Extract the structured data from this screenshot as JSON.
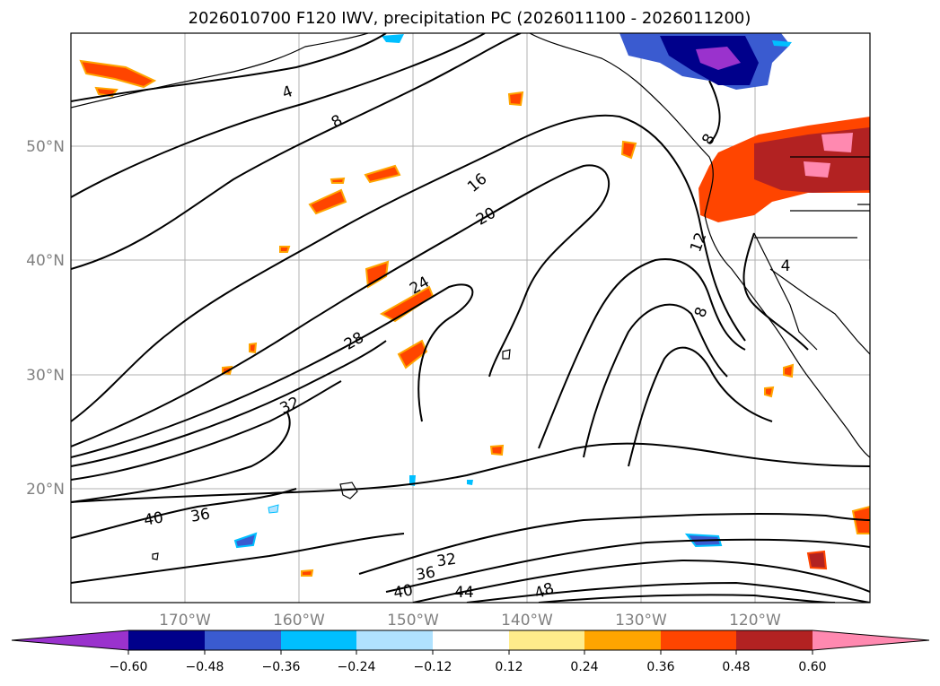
{
  "title": "2026010700 F120 IWV, precipitation PC (2026011100 - 2026011200)",
  "lat_ticks": [
    "50°N",
    "40°N",
    "30°N",
    "20°N"
  ],
  "lon_ticks": [
    "170°W",
    "160°W",
    "150°W",
    "140°W",
    "130°W",
    "120°W"
  ],
  "colorbar": {
    "ticks": [
      "−0.60",
      "−0.48",
      "−0.36",
      "−0.24",
      "−0.12",
      "0.12",
      "0.24",
      "0.36",
      "0.48",
      "0.60"
    ],
    "colors": [
      "#9a32cd",
      "#00008b",
      "#3a5bd0",
      "#00bfff",
      "#b0e2ff",
      "#ffffff",
      "#ffec8b",
      "#ffa500",
      "#ff4500",
      "#b22222",
      "#ff89b0"
    ]
  },
  "contour_labels": [
    {
      "text": "4"
    },
    {
      "text": "8"
    },
    {
      "text": "16"
    },
    {
      "text": "20"
    },
    {
      "text": "24"
    },
    {
      "text": "28"
    },
    {
      "text": "32"
    },
    {
      "text": "40"
    },
    {
      "text": "36"
    },
    {
      "text": "32"
    },
    {
      "text": "36"
    },
    {
      "text": "40"
    },
    {
      "text": "44"
    },
    {
      "text": "48"
    },
    {
      "text": "8"
    },
    {
      "text": "12"
    },
    {
      "text": "8"
    },
    {
      "text": "4"
    }
  ]
}
